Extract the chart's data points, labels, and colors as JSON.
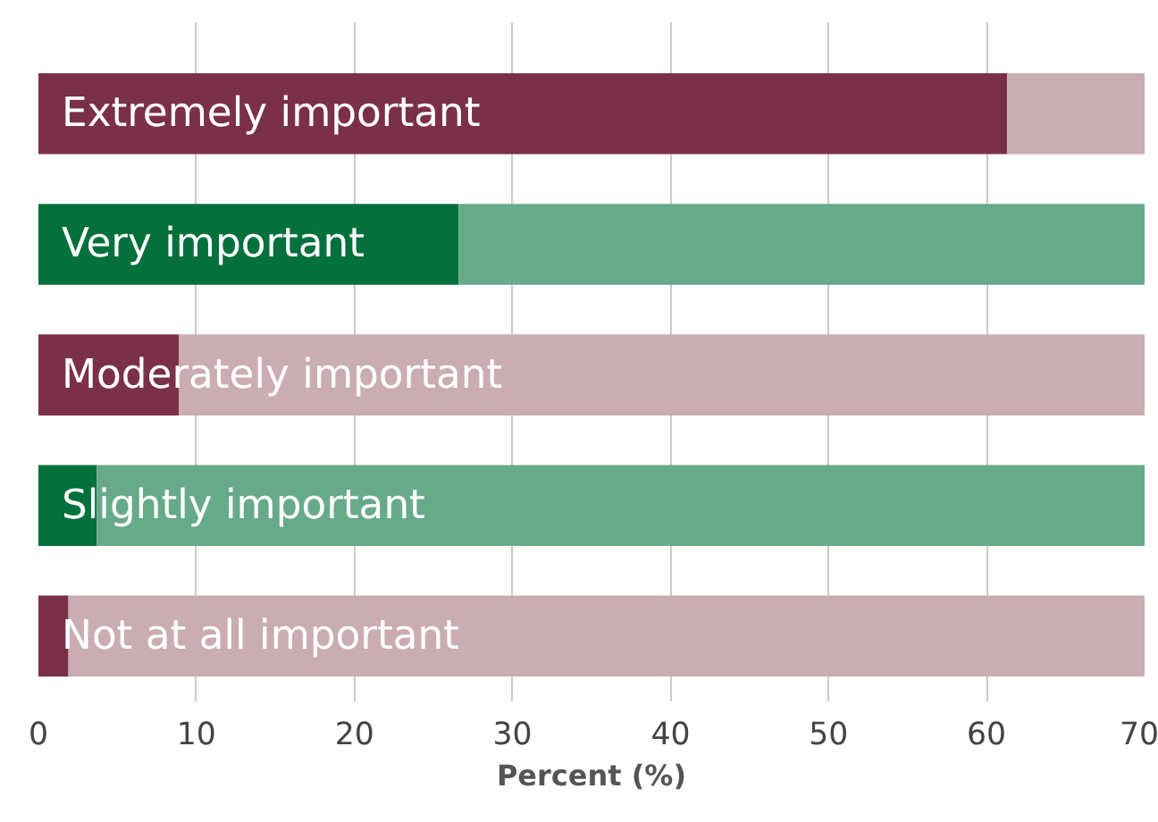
{
  "chart_data": {
    "type": "bar",
    "orientation": "horizontal",
    "xlabel": "Percent (%)",
    "categories": [
      "Extremely important",
      "Very important",
      "Moderately important",
      "Slightly important",
      "Not at all important"
    ],
    "series": [
      {
        "colors": [
          "#7b3049",
          "#04703c",
          "#7b3049",
          "#04703c",
          "#7b3049"
        ],
        "values": [
          61.3,
          26.6,
          8.9,
          3.7,
          1.9
        ]
      },
      {
        "colors": [
          "#c9adb3",
          "#67aa8a",
          "#c9adb3",
          "#67aa8a",
          "#c9adb3"
        ],
        "values": [
          8.7,
          43.4,
          61.1,
          66.3,
          68.1
        ]
      }
    ],
    "stacked": true,
    "xlim": [
      0,
      70
    ],
    "xticks": [
      0,
      10,
      20,
      30,
      40,
      50,
      60,
      70
    ],
    "grid": "x",
    "tick_labels": "x"
  }
}
